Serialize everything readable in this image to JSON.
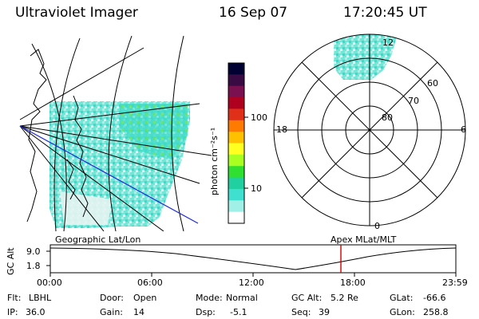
{
  "header": {
    "title": "Ultraviolet Imager",
    "date": "16 Sep 07",
    "time": "17:20:45 UT"
  },
  "left_panel": {
    "caption": "Geographic Lat/Lon"
  },
  "colorbar": {
    "ticks": [
      "100",
      "10"
    ],
    "label": "photon cm⁻²s⁻¹",
    "colors": [
      "#000033",
      "#3a0a44",
      "#7a1050",
      "#b00020",
      "#e0301a",
      "#ff7a00",
      "#ffc000",
      "#ffff20",
      "#a8ff20",
      "#30e030",
      "#20d0a0",
      "#40e0d0",
      "#a0f0e8",
      "#ffffff"
    ]
  },
  "polar_panel": {
    "caption": "Apex MLat/MLT",
    "lat_labels": [
      "80",
      "70",
      "60"
    ],
    "mlt_labels": {
      "top": "12",
      "left": "18",
      "right": "6",
      "bottom": "0"
    }
  },
  "alt_plot": {
    "ylabel": "GC Alt",
    "yticks": [
      "9.0",
      "1.8"
    ],
    "xticks": [
      "00:00",
      "06:00",
      "12:00",
      "18:00",
      "23:59"
    ],
    "current_time_color": "#d00000"
  },
  "footer": {
    "row1": [
      {
        "label": "Flt:",
        "value": "LBHL"
      },
      {
        "label": "Door:",
        "value": "Open"
      },
      {
        "label": "Mode:",
        "value": "Normal"
      },
      {
        "label": "GC Alt:",
        "value": "5.2 Re"
      },
      {
        "label": "GLat:",
        "value": "-66.6"
      }
    ],
    "row2": [
      {
        "label": "IP:",
        "value": "36.0"
      },
      {
        "label": "Gain:",
        "value": "14"
      },
      {
        "label": "Dsp:",
        "value": "-5.1"
      },
      {
        "label": "Seq:",
        "value": "39"
      },
      {
        "label": "GLon:",
        "value": "258.8"
      }
    ]
  }
}
